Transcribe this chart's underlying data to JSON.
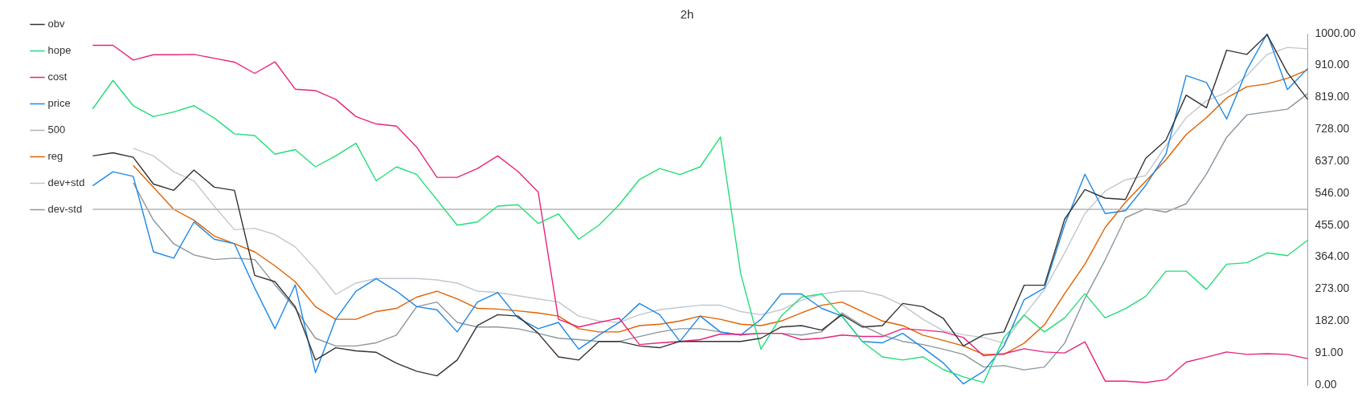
{
  "chart_data": {
    "type": "line",
    "title": "2h",
    "categories": [
      null,
      null,
      null,
      null,
      null,
      null,
      null,
      null,
      null,
      null,
      null,
      null,
      null,
      null,
      null,
      null,
      null,
      null,
      null,
      null,
      null,
      null,
      null,
      null,
      null,
      null,
      null,
      null,
      null,
      null,
      null,
      null,
      null,
      null,
      null,
      null,
      null,
      null,
      null,
      null,
      null,
      null,
      null,
      null,
      null,
      null,
      null,
      null,
      null,
      null,
      null,
      null,
      null,
      null,
      null,
      null,
      null,
      null,
      null,
      null,
      null
    ],
    "series": [
      {
        "name": "obv",
        "color": "#333333",
        "values": [
          652,
          661,
          648,
          572,
          554,
          612,
          563,
          554,
          312,
          294,
          223,
          71,
          106,
          97,
          93,
          62,
          39,
          26,
          71,
          169,
          200,
          196,
          147,
          80,
          71,
          124,
          124,
          111,
          106,
          124,
          124,
          124,
          124,
          133,
          165,
          169,
          156,
          200,
          165,
          169,
          232,
          223,
          190,
          111,
          143,
          151,
          284,
          284,
          472,
          556,
          532,
          528,
          645,
          697,
          825,
          789,
          953,
          941,
          997,
          889,
          813
        ]
      },
      {
        "name": "hope",
        "color": "#22dd77",
        "values": [
          786,
          867,
          795,
          764,
          777,
          795,
          760,
          715,
          710,
          657,
          670,
          621,
          652,
          688,
          581,
          621,
          599,
          527,
          455,
          464,
          509,
          513,
          460,
          487,
          415,
          455,
          513,
          585,
          616,
          599,
          621,
          706,
          317,
          102,
          196,
          250,
          259,
          196,
          124,
          80,
          71,
          80,
          44,
          23,
          7,
          135,
          199,
          151,
          191,
          260,
          191,
          217,
          252,
          324,
          324,
          272,
          344,
          348,
          376,
          368,
          412
        ]
      },
      {
        "name": "cost",
        "color": "#e8247c",
        "values": [
          967,
          967,
          925,
          940,
          940,
          941,
          930,
          919,
          887,
          920,
          842,
          838,
          813,
          764,
          743,
          737,
          677,
          591,
          591,
          616,
          652,
          608,
          549,
          187,
          165,
          178,
          190,
          115,
          120,
          124,
          129,
          145,
          144,
          147,
          147,
          129,
          133,
          142,
          138,
          138,
          160,
          156,
          151,
          135,
          83,
          89,
          103,
          94,
          91,
          123,
          11,
          11,
          7,
          15,
          65,
          79,
          94,
          87,
          89,
          87,
          75
        ]
      },
      {
        "name": "price",
        "color": "#1e88e5",
        "values": [
          567,
          607,
          594,
          379,
          361,
          464,
          415,
          402,
          276,
          160,
          285,
          35,
          187,
          267,
          303,
          267,
          223,
          214,
          151,
          236,
          263,
          191,
          160,
          178,
          102,
          142,
          178,
          232,
          200,
          124,
          196,
          151,
          142,
          187,
          259,
          259,
          218,
          196,
          124,
          120,
          147,
          106,
          63,
          3,
          39,
          111,
          243,
          276,
          456,
          600,
          488,
          496,
          568,
          657,
          881,
          861,
          757,
          897,
          1000,
          841,
          901
        ]
      },
      {
        "name": "500",
        "color": "#b5b5b5",
        "values": [
          500,
          500,
          500,
          500,
          500,
          500,
          500,
          500,
          500,
          500,
          500,
          500,
          500,
          500,
          500,
          500,
          500,
          500,
          500,
          500,
          500,
          500,
          500,
          500,
          500,
          500,
          500,
          500,
          500,
          500,
          500,
          500,
          500,
          500,
          500,
          500,
          500,
          500,
          500,
          500,
          500,
          500,
          500,
          500,
          500,
          500,
          500,
          500,
          500,
          500,
          500,
          500,
          500,
          500,
          500,
          500,
          500,
          500,
          500,
          500,
          500
        ]
      },
      {
        "name": "reg",
        "color": "#e06000",
        "values": [
          null,
          null,
          625,
          563,
          500,
          469,
          424,
          402,
          379,
          339,
          294,
          223,
          187,
          187,
          209,
          218,
          250,
          267,
          245,
          218,
          216,
          211,
          205,
          196,
          160,
          151,
          151,
          169,
          173,
          182,
          196,
          187,
          173,
          169,
          182,
          205,
          227,
          236,
          209,
          182,
          169,
          142,
          127,
          111,
          87,
          87,
          119,
          171,
          260,
          344,
          448,
          520,
          580,
          641,
          713,
          761,
          817,
          849,
          857,
          873,
          897
        ]
      },
      {
        "name": "dev+std",
        "color": "#c0c8d0",
        "values": [
          null,
          null,
          674,
          652,
          607,
          581,
          509,
          442,
          446,
          428,
          393,
          330,
          258,
          290,
          303,
          303,
          303,
          299,
          290,
          267,
          263,
          254,
          245,
          236,
          196,
          182,
          178,
          200,
          214,
          221,
          227,
          227,
          209,
          200,
          214,
          241,
          259,
          267,
          267,
          254,
          227,
          187,
          155,
          143,
          135,
          119,
          199,
          271,
          376,
          488,
          552,
          584,
          596,
          681,
          761,
          809,
          833,
          881,
          941,
          961,
          957
        ]
      },
      {
        "name": "dev-std",
        "color": "#8a96a0",
        "values": [
          null,
          null,
          576,
          469,
          402,
          370,
          357,
          361,
          357,
          285,
          218,
          133,
          111,
          111,
          120,
          142,
          223,
          236,
          178,
          165,
          165,
          160,
          147,
          133,
          129,
          124,
          124,
          138,
          151,
          160,
          160,
          151,
          142,
          147,
          147,
          142,
          151,
          205,
          169,
          142,
          124,
          115,
          102,
          87,
          51,
          55,
          43,
          51,
          119,
          247,
          356,
          476,
          502,
          492,
          516,
          600,
          705,
          769,
          777,
          785,
          829
        ]
      }
    ],
    "ylim": [
      0,
      1000
    ],
    "yticks": [
      {
        "value": 0,
        "label": "0.00"
      },
      {
        "value": 91,
        "label": "91.00"
      },
      {
        "value": 182,
        "label": "182.00"
      },
      {
        "value": 273,
        "label": "273.00"
      },
      {
        "value": 364,
        "label": "364.00"
      },
      {
        "value": 455,
        "label": "455.00"
      },
      {
        "value": 546,
        "label": "546.00"
      },
      {
        "value": 637,
        "label": "637.00"
      },
      {
        "value": 728,
        "label": "728.00"
      },
      {
        "value": 819,
        "label": "819.00"
      },
      {
        "value": 910,
        "label": "910.00"
      },
      {
        "value": 1000,
        "label": "1000.00"
      }
    ],
    "tick_labels": "y",
    "grid": false,
    "legend": "top left",
    "marker": "none",
    "line_style": "solid"
  }
}
